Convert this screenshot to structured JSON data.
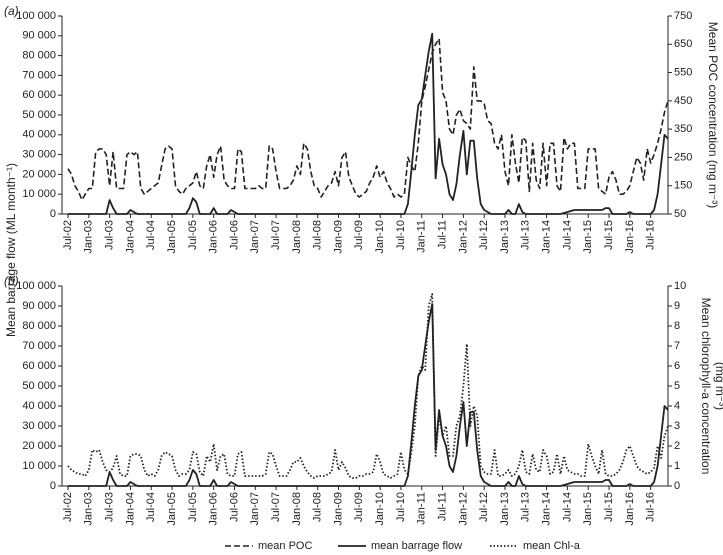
{
  "shared_y_label": "Mean barrage flow (ML month⁻¹)",
  "chart_data": [
    {
      "type": "line",
      "panel_label": "(a)",
      "y2_label": [
        "Mean POC concentration (mg m⁻³)"
      ],
      "categories": [
        "Jul-02",
        null,
        null,
        null,
        null,
        null,
        "Jan-03",
        null,
        null,
        null,
        null,
        null,
        "Jul-03",
        null,
        null,
        null,
        null,
        null,
        "Jan-04",
        null,
        null,
        null,
        null,
        null,
        "Jul-04",
        null,
        null,
        null,
        null,
        null,
        "Jan-05",
        null,
        null,
        null,
        null,
        null,
        "Jul-05",
        null,
        null,
        null,
        null,
        null,
        "Jan-06",
        null,
        null,
        null,
        null,
        null,
        "Jul-06",
        null,
        null,
        null,
        null,
        null,
        "Jan-07",
        null,
        null,
        null,
        null,
        null,
        "Jul-07",
        null,
        null,
        null,
        null,
        null,
        "Jan-08",
        null,
        null,
        null,
        null,
        null,
        "Jul-08",
        null,
        null,
        null,
        null,
        null,
        "Jan-09",
        null,
        null,
        null,
        null,
        null,
        "Jul-09",
        null,
        null,
        null,
        null,
        null,
        "Jan-10",
        null,
        null,
        null,
        null,
        null,
        "Jul-10",
        null,
        null,
        null,
        null,
        null,
        "Jan-11",
        null,
        null,
        null,
        null,
        null,
        "Jul-11",
        null,
        null,
        null,
        null,
        null,
        "Jan-12",
        null,
        null,
        null,
        null,
        null,
        "Jul-12",
        null,
        null,
        null,
        null,
        null,
        "Jan-13",
        null,
        null,
        null,
        null,
        null,
        "Jul-13",
        null,
        null,
        null,
        null,
        null,
        "Jan-14",
        null,
        null,
        null,
        null,
        null,
        "Jul-14",
        null,
        null,
        null,
        null,
        null,
        "Jan-15",
        null,
        null,
        null,
        null,
        null,
        "Jul-15",
        null,
        null,
        null,
        null,
        null,
        "Jan-16",
        null,
        null,
        null,
        null,
        null,
        "Jul-16",
        null,
        null,
        null,
        null,
        null
      ],
      "series": [
        {
          "name": "mean POC",
          "color": "#222222",
          "style": "dashed",
          "axis": "y2",
          "values": [
            210,
            190,
            150,
            130,
            100,
            120,
            140,
            140,
            270,
            280,
            280,
            260,
            150,
            270,
            140,
            140,
            140,
            260,
            270,
            260,
            270,
            140,
            120,
            130,
            140,
            150,
            160,
            220,
            280,
            290,
            280,
            150,
            130,
            120,
            140,
            150,
            160,
            200,
            150,
            140,
            220,
            260,
            180,
            260,
            290,
            170,
            150,
            140,
            140,
            280,
            270,
            140,
            140,
            140,
            140,
            150,
            140,
            140,
            290,
            280,
            200,
            140,
            140,
            140,
            150,
            170,
            220,
            190,
            300,
            280,
            200,
            150,
            140,
            110,
            130,
            150,
            160,
            200,
            150,
            250,
            270,
            180,
            150,
            120,
            110,
            120,
            130,
            160,
            180,
            220,
            180,
            200,
            160,
            140,
            110,
            120,
            110,
            120,
            250,
            220,
            200,
            300,
            450,
            500,
            560,
            620,
            650,
            670,
            480,
            450,
            350,
            330,
            400,
            420,
            380,
            370,
            350,
            570,
            450,
            450,
            440,
            380,
            370,
            300,
            280,
            330,
            200,
            150,
            330,
            230,
            160,
            320,
            310,
            130,
            300,
            170,
            140,
            300,
            150,
            300,
            300,
            150,
            130,
            320,
            280,
            300,
            300,
            140,
            140,
            140,
            280,
            280,
            280,
            140,
            130,
            120,
            180,
            200,
            170,
            120,
            120,
            130,
            150,
            200,
            250,
            230,
            170,
            280,
            230,
            260,
            300,
            350,
            410,
            450
          ]
        },
        {
          "name": "mean barrage flow",
          "color": "#222222",
          "style": "solid",
          "axis": "y",
          "values": [
            0,
            0,
            0,
            0,
            0,
            0,
            0,
            0,
            0,
            0,
            0,
            0,
            7000,
            3000,
            0,
            0,
            0,
            0,
            2000,
            1000,
            0,
            0,
            0,
            0,
            0,
            0,
            0,
            0,
            0,
            0,
            0,
            0,
            0,
            0,
            0,
            3000,
            8000,
            6000,
            0,
            0,
            0,
            0,
            3000,
            0,
            0,
            0,
            0,
            2000,
            1000,
            0,
            0,
            0,
            0,
            0,
            0,
            0,
            0,
            0,
            0,
            0,
            0,
            0,
            0,
            0,
            0,
            0,
            0,
            0,
            0,
            0,
            0,
            0,
            0,
            0,
            0,
            0,
            0,
            0,
            0,
            0,
            0,
            0,
            0,
            0,
            0,
            0,
            0,
            0,
            0,
            0,
            0,
            0,
            0,
            0,
            0,
            0,
            0,
            0,
            5000,
            22000,
            40000,
            55000,
            58000,
            70000,
            82000,
            91000,
            18000,
            38000,
            25000,
            20000,
            10000,
            7000,
            15000,
            30000,
            42000,
            20000,
            37000,
            37000,
            18000,
            5000,
            2000,
            1000,
            0,
            0,
            0,
            0,
            0,
            2000,
            0,
            0,
            5000,
            1000,
            0,
            0,
            0,
            0,
            0,
            0,
            0,
            0,
            0,
            0,
            0,
            500,
            1000,
            1500,
            2000,
            2000,
            2000,
            2000,
            2000,
            2000,
            2000,
            2000,
            2000,
            3000,
            3000,
            0,
            0,
            0,
            0,
            0,
            1000,
            0,
            0,
            0,
            0,
            0,
            0,
            2000,
            10000,
            25000,
            40000,
            38000
          ]
        }
      ],
      "ylim": [
        0,
        100000
      ],
      "yticks": [
        0,
        {
          "value": 10000,
          "label": "10 000"
        },
        {
          "value": 20000,
          "label": "20 000"
        },
        {
          "value": 30000,
          "label": "30 000"
        },
        {
          "value": 40000,
          "label": "40 000"
        },
        {
          "value": 50000,
          "label": "50 000"
        },
        {
          "value": 60000,
          "label": "60 000"
        },
        {
          "value": 70000,
          "label": "70 000"
        },
        {
          "value": 80000,
          "label": "80 000"
        },
        {
          "value": 90000,
          "label": "90 000"
        },
        {
          "value": 100000,
          "label": "100 000"
        }
      ],
      "y2lim": [
        50,
        750
      ],
      "y2ticks": [
        50,
        150,
        250,
        350,
        450,
        550,
        650,
        750
      ]
    },
    {
      "type": "line",
      "panel_label": "(b)",
      "y2_label": [
        "Mean chlorophyll-a concentration",
        "(mg m⁻³)"
      ],
      "categories": [
        "Jul-02",
        null,
        null,
        null,
        null,
        null,
        "Jan-03",
        null,
        null,
        null,
        null,
        null,
        "Jul-03",
        null,
        null,
        null,
        null,
        null,
        "Jan-04",
        null,
        null,
        null,
        null,
        null,
        "Jul-04",
        null,
        null,
        null,
        null,
        null,
        "Jan-05",
        null,
        null,
        null,
        null,
        null,
        "Jul-05",
        null,
        null,
        null,
        null,
        null,
        "Jan-06",
        null,
        null,
        null,
        null,
        null,
        "Jul-06",
        null,
        null,
        null,
        null,
        null,
        "Jan-07",
        null,
        null,
        null,
        null,
        null,
        "Jul-07",
        null,
        null,
        null,
        null,
        null,
        "Jan-08",
        null,
        null,
        null,
        null,
        null,
        "Jul-08",
        null,
        null,
        null,
        null,
        null,
        "Jan-09",
        null,
        null,
        null,
        null,
        null,
        "Jul-09",
        null,
        null,
        null,
        null,
        null,
        "Jan-10",
        null,
        null,
        null,
        null,
        null,
        "Jul-10",
        null,
        null,
        null,
        null,
        null,
        "Jan-11",
        null,
        null,
        null,
        null,
        null,
        "Jul-11",
        null,
        null,
        null,
        null,
        null,
        "Jan-12",
        null,
        null,
        null,
        null,
        null,
        "Jul-12",
        null,
        null,
        null,
        null,
        null,
        "Jan-13",
        null,
        null,
        null,
        null,
        null,
        "Jul-13",
        null,
        null,
        null,
        null,
        null,
        "Jan-14",
        null,
        null,
        null,
        null,
        null,
        "Jul-14",
        null,
        null,
        null,
        null,
        null,
        "Jan-15",
        null,
        null,
        null,
        null,
        null,
        "Jul-15",
        null,
        null,
        null,
        null,
        null,
        "Jan-16",
        null,
        null,
        null,
        null,
        null,
        "Jul-16",
        null,
        null,
        null,
        null,
        null
      ],
      "series": [
        {
          "name": "mean Chl-a",
          "color": "#222222",
          "style": "dotted",
          "axis": "y2",
          "values": [
            1,
            0.8,
            0.7,
            0.6,
            0.6,
            0.5,
            0.8,
            1.8,
            1.7,
            1.8,
            1.2,
            0.8,
            0.7,
            0.9,
            1.5,
            0.6,
            0.5,
            0.5,
            1.5,
            1.6,
            1.6,
            1.5,
            0.8,
            0.5,
            0.6,
            0.5,
            0.8,
            1.5,
            1.7,
            1.6,
            1.5,
            0.8,
            0.5,
            0.6,
            0.6,
            0.8,
            1.7,
            1.6,
            0.7,
            0.5,
            1.5,
            1.2,
            2.1,
            0.8,
            1.5,
            1.6,
            0.6,
            0.5,
            0.5,
            1.6,
            1.7,
            0.5,
            0.5,
            0.5,
            0.5,
            0.5,
            0.5,
            0.6,
            1.7,
            1.6,
            1.0,
            0.5,
            0.5,
            0.5,
            0.8,
            1.2,
            1.2,
            1.4,
            1.0,
            0.7,
            0.5,
            0.4,
            0.5,
            0.5,
            0.5,
            0.6,
            0.7,
            1.8,
            0.8,
            1.2,
            0.9,
            0.5,
            0.4,
            0.4,
            0.5,
            0.5,
            0.6,
            0.6,
            0.7,
            1.6,
            1.2,
            0.6,
            0.5,
            0.4,
            0.5,
            0.6,
            1.7,
            0.8,
            0.6,
            1.7,
            3.0,
            5.5,
            6.0,
            5.8,
            9.0,
            9.6,
            1.5,
            3.5,
            2.5,
            3.0,
            1.5,
            1.5,
            3.0,
            3.5,
            5.0,
            7.1,
            3.0,
            4.0,
            3.5,
            1.0,
            0.7,
            0.6,
            0.6,
            1.8,
            0.5,
            0.5,
            0.6,
            0.8,
            0.5,
            0.6,
            1.0,
            1.8,
            0.7,
            0.6,
            1.6,
            0.8,
            0.7,
            1.8,
            1.5,
            0.6,
            0.7,
            1.6,
            0.6,
            1.5,
            0.8,
            0.7,
            0.6,
            0.6,
            0.5,
            0.5,
            2.1,
            1.5,
            1.0,
            0.6,
            1.8,
            0.6,
            0.5,
            0.5,
            0.6,
            0.8,
            1.2,
            1.8,
            2.0,
            1.5,
            1.0,
            0.8,
            0.7,
            0.6,
            0.7,
            0.9,
            2.0,
            1.4,
            2.5,
            3.0
          ]
        },
        {
          "name": "mean barrage flow",
          "color": "#222222",
          "style": "solid",
          "axis": "y",
          "values": [
            0,
            0,
            0,
            0,
            0,
            0,
            0,
            0,
            0,
            0,
            0,
            0,
            7000,
            3000,
            0,
            0,
            0,
            0,
            2000,
            1000,
            0,
            0,
            0,
            0,
            0,
            0,
            0,
            0,
            0,
            0,
            0,
            0,
            0,
            0,
            0,
            3000,
            8000,
            6000,
            0,
            0,
            0,
            0,
            3000,
            0,
            0,
            0,
            0,
            2000,
            1000,
            0,
            0,
            0,
            0,
            0,
            0,
            0,
            0,
            0,
            0,
            0,
            0,
            0,
            0,
            0,
            0,
            0,
            0,
            0,
            0,
            0,
            0,
            0,
            0,
            0,
            0,
            0,
            0,
            0,
            0,
            0,
            0,
            0,
            0,
            0,
            0,
            0,
            0,
            0,
            0,
            0,
            0,
            0,
            0,
            0,
            0,
            0,
            0,
            0,
            5000,
            22000,
            40000,
            55000,
            58000,
            70000,
            82000,
            91000,
            18000,
            38000,
            25000,
            20000,
            10000,
            7000,
            15000,
            30000,
            42000,
            20000,
            37000,
            37000,
            18000,
            5000,
            2000,
            1000,
            0,
            0,
            0,
            0,
            0,
            2000,
            0,
            0,
            5000,
            1000,
            0,
            0,
            0,
            0,
            0,
            0,
            0,
            0,
            0,
            0,
            0,
            500,
            1000,
            1500,
            2000,
            2000,
            2000,
            2000,
            2000,
            2000,
            2000,
            2000,
            2000,
            3000,
            3000,
            0,
            0,
            0,
            0,
            0,
            1000,
            0,
            0,
            0,
            0,
            0,
            0,
            2000,
            10000,
            25000,
            40000,
            38000
          ]
        }
      ],
      "ylim": [
        0,
        100000
      ],
      "yticks": [
        0,
        {
          "value": 10000,
          "label": "10 000"
        },
        {
          "value": 20000,
          "label": "20 000"
        },
        {
          "value": 30000,
          "label": "30 000"
        },
        {
          "value": 40000,
          "label": "40 000"
        },
        {
          "value": 50000,
          "label": "50 000"
        },
        {
          "value": 60000,
          "label": "60 000"
        },
        {
          "value": 70000,
          "label": "70 000"
        },
        {
          "value": 80000,
          "label": "80 000"
        },
        {
          "value": 90000,
          "label": "90 000"
        },
        {
          "value": 100000,
          "label": "100 000"
        }
      ],
      "y2lim": [
        0,
        10
      ],
      "y2ticks": [
        0,
        1,
        2,
        3,
        4,
        5,
        6,
        7,
        8,
        9,
        10
      ]
    }
  ],
  "legend": {
    "position": "bottom"
  }
}
